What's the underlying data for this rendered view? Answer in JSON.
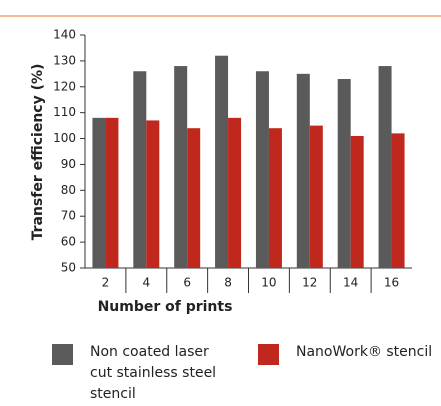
{
  "chart_data": {
    "type": "bar",
    "x_label": "Number of prints",
    "y_label": "Transfer efficiency (%)",
    "categories": [
      "2",
      "4",
      "6",
      "8",
      "10",
      "12",
      "14",
      "16"
    ],
    "series": [
      {
        "name": "Non coated laser cut stainless steel stencil",
        "color": "#5a5a5a",
        "values": [
          108,
          126,
          128,
          132,
          126,
          125,
          123,
          128
        ]
      },
      {
        "name": "NanoWork® stencil",
        "color": "#c0281e",
        "values": [
          108,
          107,
          104,
          108,
          104,
          105,
          101,
          102
        ]
      }
    ],
    "ylim": [
      50,
      140
    ],
    "yticks": [
      50,
      60,
      70,
      80,
      90,
      100,
      110,
      120,
      130,
      140
    ],
    "grid": false
  }
}
